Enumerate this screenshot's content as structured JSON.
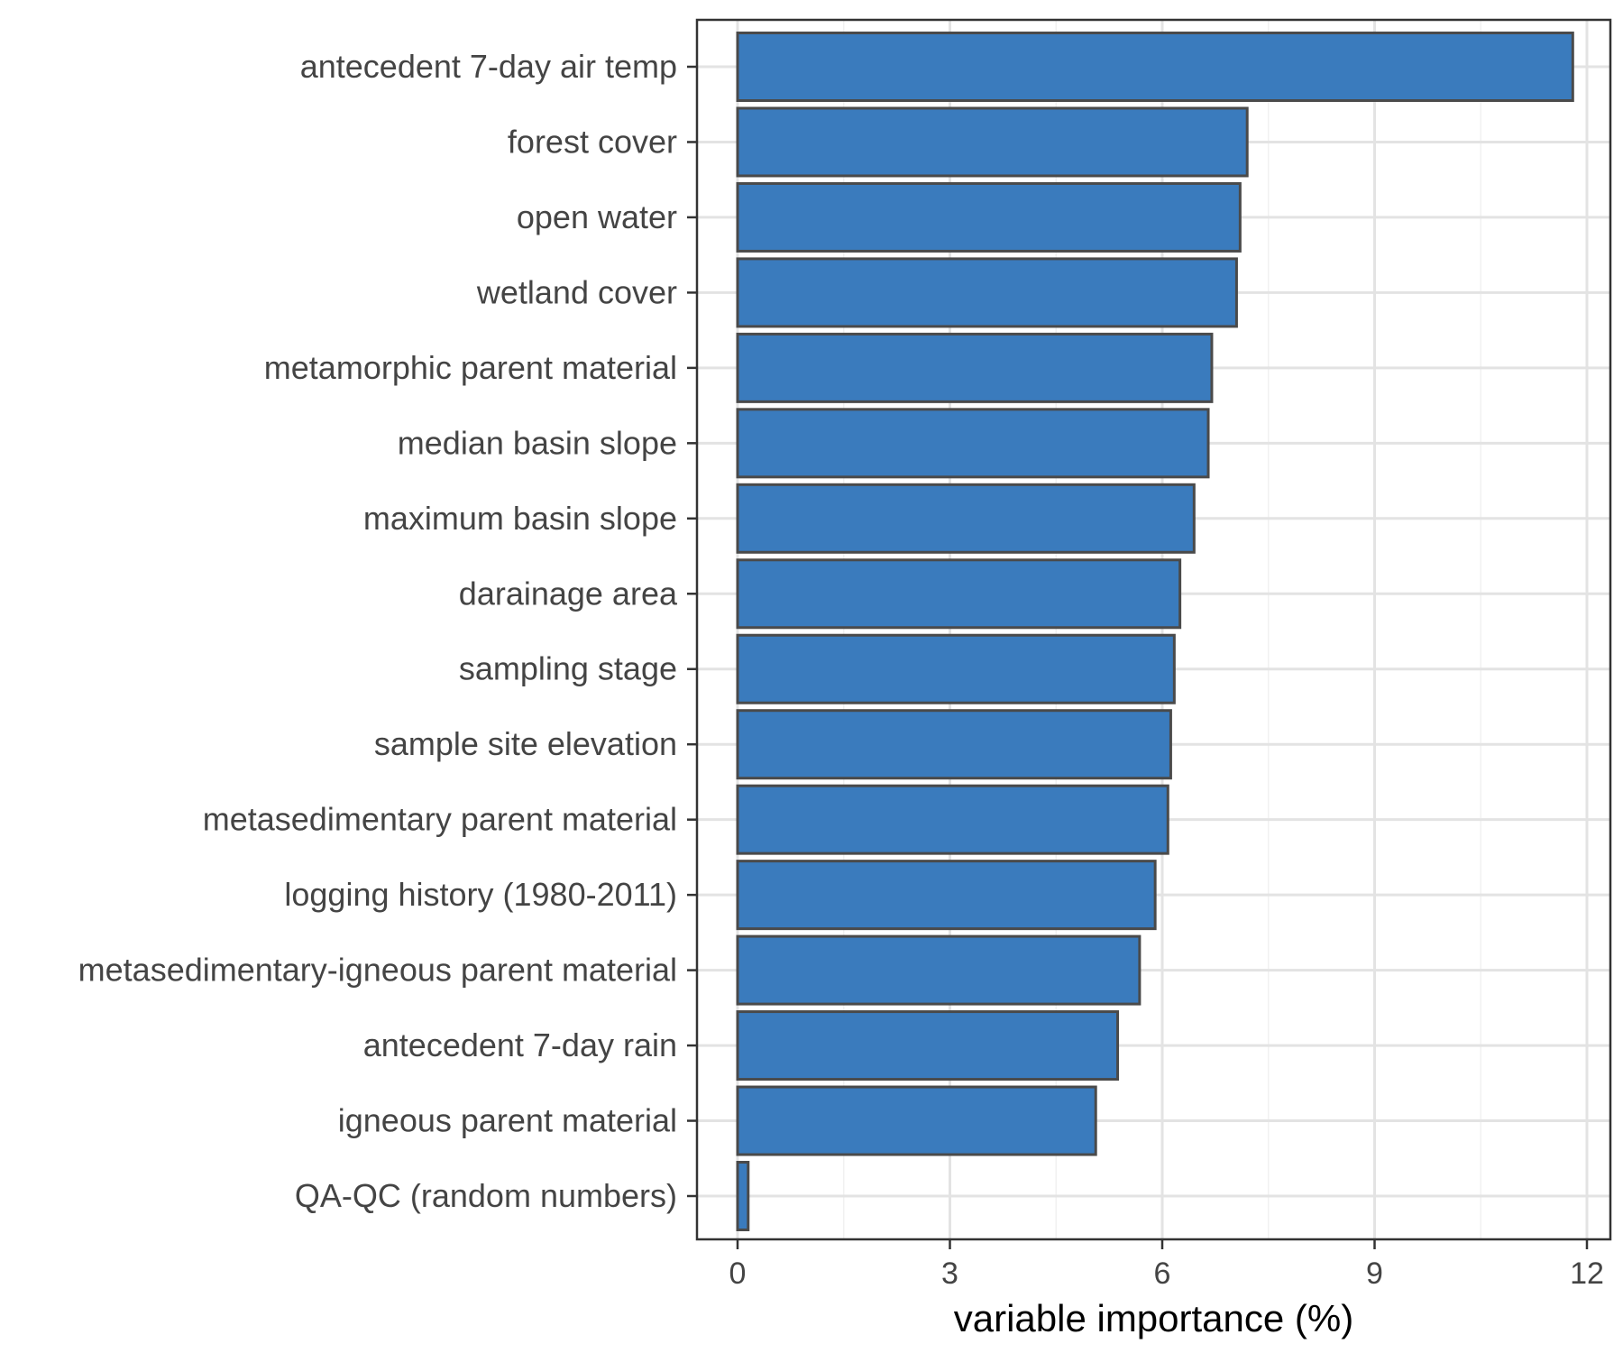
{
  "chart_data": {
    "type": "bar",
    "orientation": "horizontal",
    "title": "",
    "xlabel": "variable importance (%)",
    "ylabel": "",
    "xlim": [
      0,
      12
    ],
    "x_ticks": [
      0,
      3,
      6,
      9,
      12
    ],
    "grid": true,
    "categories": [
      "antecedent 7-day air temp",
      "forest cover",
      "open water",
      "wetland cover",
      "metamorphic parent material",
      "median basin slope",
      "maximum basin slope",
      "darainage area",
      "sampling stage",
      "sample site elevation",
      "metasedimentary parent material",
      "logging history (1980-2011)",
      "metasedimentary-igneous parent material",
      "antecedent 7-day rain",
      "igneous parent material",
      "QA-QC (random numbers)"
    ],
    "values": [
      11.8,
      7.2,
      7.1,
      7.05,
      6.7,
      6.65,
      6.45,
      6.25,
      6.17,
      6.12,
      6.08,
      5.9,
      5.68,
      5.37,
      5.06,
      0.15
    ],
    "colors": {
      "bar_fill": "#3a7bbd",
      "bar_stroke": "#4a4a4a",
      "grid_major": "#e3e3e3",
      "grid_minor": "#f1f1f1",
      "panel_border": "#333333",
      "text": "#444444"
    }
  }
}
